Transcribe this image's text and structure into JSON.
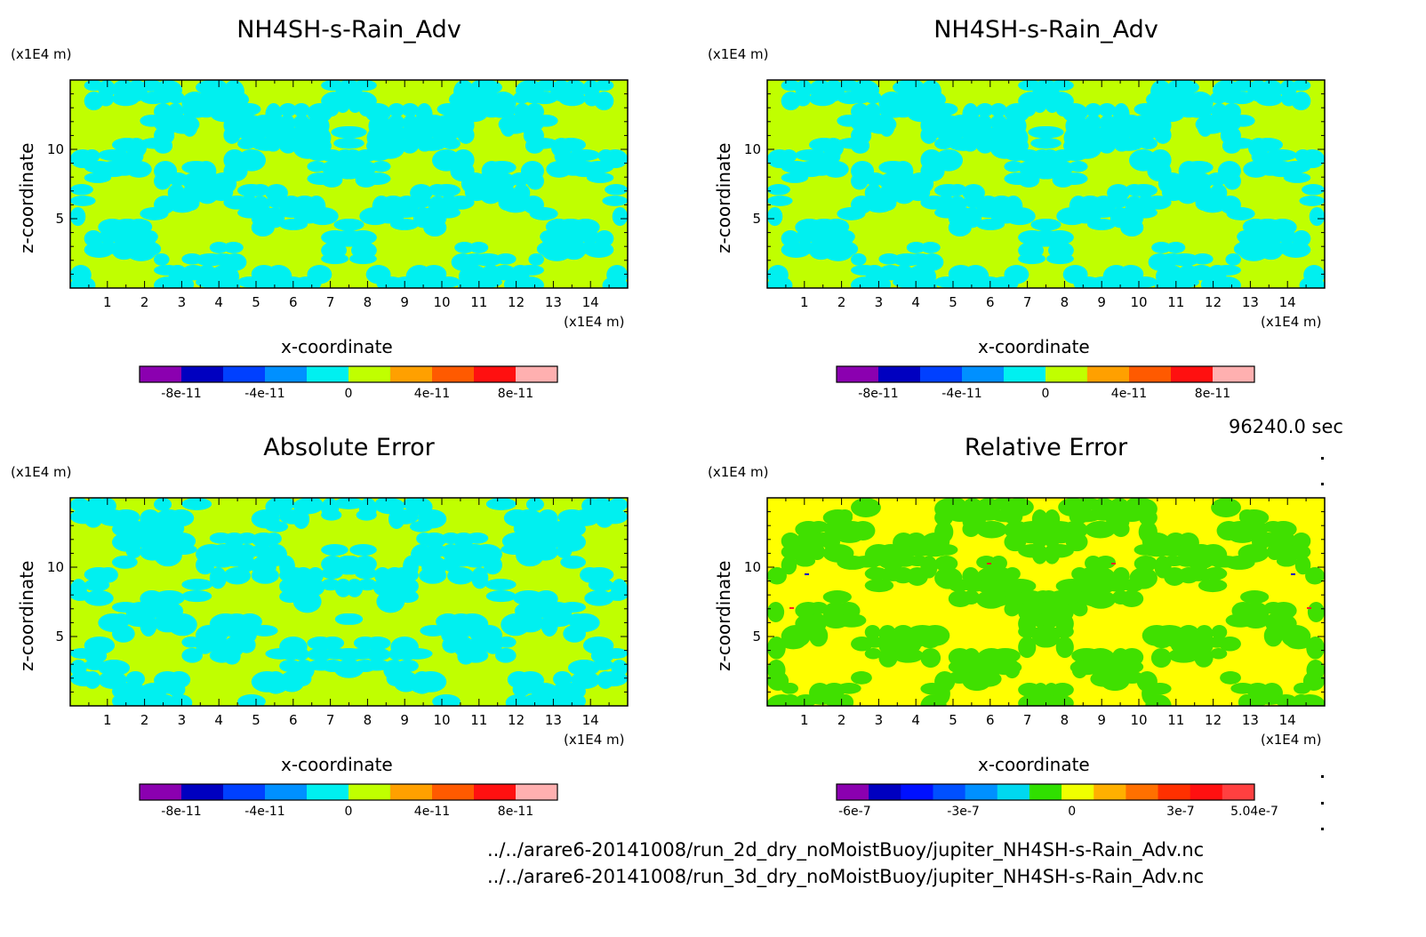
{
  "time_label": "96240.0 sec",
  "file_lines": [
    "../../arare6-20141008/run_2d_dry_noMoistBuoy/jupiter_NH4SH-s-Rain_Adv.nc",
    "../../arare6-20141008/run_3d_dry_noMoistBuoy/jupiter_NH4SH-s-Rain_Adv.nc"
  ],
  "chart_data": [
    {
      "type": "heatmap",
      "title": "NH4SH-s-Rain_Adv",
      "xlabel": "x-coordinate",
      "ylabel": "z-coordinate",
      "x_unit": "(x1E4 m)",
      "y_unit": "(x1E4 m)",
      "xlim": [
        0,
        15
      ],
      "ylim": [
        0,
        15
      ],
      "x_ticks": [
        1,
        2,
        3,
        4,
        5,
        6,
        7,
        8,
        9,
        10,
        11,
        12,
        13,
        14
      ],
      "y_ticks": [
        5,
        10
      ],
      "colorbar": {
        "colors": [
          "#8b00b0",
          "#0000c0",
          "#0040ff",
          "#0090ff",
          "#00f0f0",
          "#c0ff00",
          "#ffa000",
          "#ff5a00",
          "#ff1010",
          "#ffb0b0"
        ],
        "tick_values": [
          -8e-11,
          -4e-11,
          0,
          4e-11,
          8e-11
        ],
        "tick_labels": [
          "-8e-11",
          "-4e-11",
          "0",
          "4e-11",
          "8e-11"
        ],
        "range": [
          -1e-10,
          1e-10
        ]
      },
      "field_colors": [
        "#00f0f0",
        "#c0ff00"
      ]
    },
    {
      "type": "heatmap",
      "title": "NH4SH-s-Rain_Adv",
      "xlabel": "x-coordinate",
      "ylabel": "z-coordinate",
      "x_unit": "(x1E4 m)",
      "y_unit": "(x1E4 m)",
      "xlim": [
        0,
        15
      ],
      "ylim": [
        0,
        15
      ],
      "x_ticks": [
        1,
        2,
        3,
        4,
        5,
        6,
        7,
        8,
        9,
        10,
        11,
        12,
        13,
        14
      ],
      "y_ticks": [
        5,
        10
      ],
      "colorbar": {
        "colors": [
          "#8b00b0",
          "#0000c0",
          "#0040ff",
          "#0090ff",
          "#00f0f0",
          "#c0ff00",
          "#ffa000",
          "#ff5a00",
          "#ff1010",
          "#ffb0b0"
        ],
        "tick_values": [
          -8e-11,
          -4e-11,
          0,
          4e-11,
          8e-11
        ],
        "tick_labels": [
          "-8e-11",
          "-4e-11",
          "0",
          "4e-11",
          "8e-11"
        ],
        "range": [
          -1e-10,
          1e-10
        ]
      },
      "field_colors": [
        "#00f0f0",
        "#c0ff00"
      ]
    },
    {
      "type": "heatmap",
      "title": "Absolute Error",
      "xlabel": "x-coordinate",
      "ylabel": "z-coordinate",
      "x_unit": "(x1E4 m)",
      "y_unit": "(x1E4 m)",
      "xlim": [
        0,
        15
      ],
      "ylim": [
        0,
        15
      ],
      "x_ticks": [
        1,
        2,
        3,
        4,
        5,
        6,
        7,
        8,
        9,
        10,
        11,
        12,
        13,
        14
      ],
      "y_ticks": [
        5,
        10
      ],
      "colorbar": {
        "colors": [
          "#8b00b0",
          "#0000c0",
          "#0040ff",
          "#0090ff",
          "#00f0f0",
          "#c0ff00",
          "#ffa000",
          "#ff5a00",
          "#ff1010",
          "#ffb0b0"
        ],
        "tick_values": [
          -8e-11,
          -4e-11,
          0,
          4e-11,
          8e-11
        ],
        "tick_labels": [
          "-8e-11",
          "-4e-11",
          "0",
          "4e-11",
          "8e-11"
        ],
        "range": [
          -1e-10,
          1e-10
        ]
      },
      "field_colors": [
        "#00f0f0",
        "#c0ff00"
      ]
    },
    {
      "type": "heatmap",
      "title": "Relative Error",
      "xlabel": "x-coordinate",
      "ylabel": "z-coordinate",
      "x_unit": "(x1E4 m)",
      "y_unit": "(x1E4 m)",
      "xlim": [
        0,
        15
      ],
      "ylim": [
        0,
        15
      ],
      "x_ticks": [
        1,
        2,
        3,
        4,
        5,
        6,
        7,
        8,
        9,
        10,
        11,
        12,
        13,
        14
      ],
      "y_ticks": [
        5,
        10
      ],
      "colorbar": {
        "colors": [
          "#8b00b0",
          "#0000c0",
          "#0010ff",
          "#0050ff",
          "#0090ff",
          "#00d8f0",
          "#30e000",
          "#f0ff00",
          "#ffb000",
          "#ff7000",
          "#ff3000",
          "#ff1010",
          "#ff4040"
        ],
        "tick_values": [
          -6e-07,
          -3e-07,
          0,
          3e-07,
          5.04e-07
        ],
        "tick_labels": [
          "-6e-7",
          "-3e-7",
          "0",
          "3e-7",
          "5.04e-7"
        ],
        "range": [
          -6.5e-07,
          5.04e-07
        ]
      },
      "field_colors": [
        "#40e000",
        "#ffff00"
      ]
    }
  ]
}
